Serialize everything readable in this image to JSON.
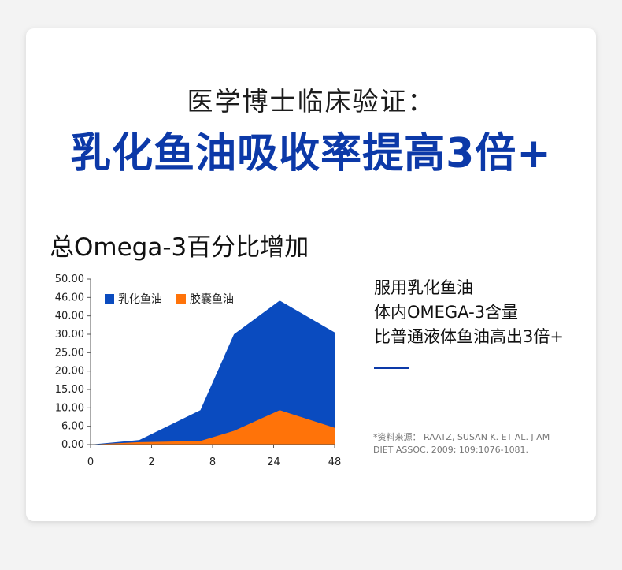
{
  "header": {
    "subtitle": "医学博士临床验证：",
    "title": "乳化鱼油吸收率提高3倍+"
  },
  "chart_data": {
    "type": "area",
    "title": "总Omega-3百分比增加",
    "x_tick_labels": [
      "0",
      "2",
      "8",
      "24",
      "48"
    ],
    "y_tick_labels": [
      "0.00",
      "6.00",
      "10.00",
      "15.00",
      "20.00",
      "25.00",
      "30.00",
      "40.00",
      "46.00",
      "50.00"
    ],
    "legend_position": "top-left",
    "grid": false,
    "series": [
      {
        "name": "乳化鱼油",
        "color": "#0a4bbf",
        "values": [
          0,
          1.5,
          9.5,
          30,
          45,
          31
        ]
      },
      {
        "name": "胶囊鱼油",
        "color": "#ff7309",
        "values": [
          0,
          0.8,
          1.2,
          4.5,
          9.5,
          5.5
        ]
      }
    ],
    "point_x_positions": [
      0,
      0.8,
      1.8,
      2.35,
      3.1,
      4
    ]
  },
  "description": {
    "lines": [
      "服用乳化鱼油",
      "体内OMEGA-3含量",
      "比普通液体鱼油高出3倍+"
    ]
  },
  "source": {
    "lines": [
      "*资料来源： RAATZ, SUSAN K. ET AL. J AM",
      "DIET ASSOC. 2009; 109:1076-1081."
    ]
  }
}
